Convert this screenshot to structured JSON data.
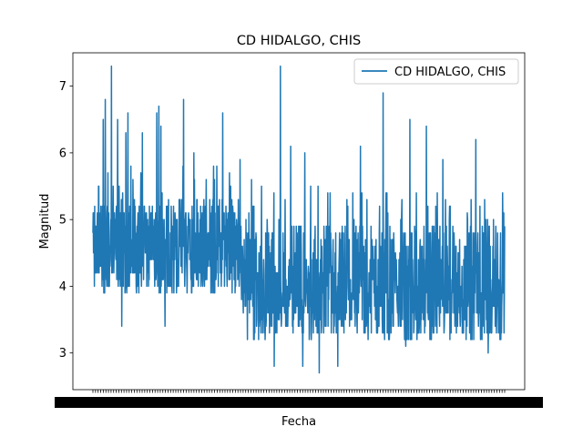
{
  "chart_data": {
    "type": "line",
    "title": "CD HIDALGO, CHIS",
    "xlabel": "Fecha",
    "ylabel": "Magnitud",
    "ylim": [
      2.45,
      7.5
    ],
    "yticks": [
      3,
      4,
      5,
      6,
      7
    ],
    "x_tick_labels_overlapping": true,
    "legend": {
      "position": "upper right",
      "entries": [
        "CD HIDALGO, CHIS"
      ]
    },
    "grid": false,
    "series": [
      {
        "name": "CD HIDALGO, CHIS",
        "color": "#1f77b4",
        "point_count": 1400,
        "segments": [
          {
            "until": 0.36,
            "low": 3.9,
            "mid": 4.6,
            "high": 5.3
          },
          {
            "until": 0.39,
            "low": 3.6,
            "mid": 4.3,
            "high": 5.1
          },
          {
            "until": 1.0,
            "low": 3.2,
            "mid": 3.9,
            "high": 4.9
          }
        ],
        "peaks": [
          {
            "pos": 0.045,
            "value": 7.3
          },
          {
            "pos": 0.025,
            "value": 6.5
          },
          {
            "pos": 0.03,
            "value": 6.8
          },
          {
            "pos": 0.06,
            "value": 6.5
          },
          {
            "pos": 0.08,
            "value": 6.3
          },
          {
            "pos": 0.085,
            "value": 6.6
          },
          {
            "pos": 0.12,
            "value": 6.3
          },
          {
            "pos": 0.155,
            "value": 6.6
          },
          {
            "pos": 0.16,
            "value": 6.7
          },
          {
            "pos": 0.165,
            "value": 6.4
          },
          {
            "pos": 0.22,
            "value": 6.8
          },
          {
            "pos": 0.245,
            "value": 6.0
          },
          {
            "pos": 0.315,
            "value": 6.6
          },
          {
            "pos": 0.455,
            "value": 7.3
          },
          {
            "pos": 0.48,
            "value": 6.1
          },
          {
            "pos": 0.515,
            "value": 6.0
          },
          {
            "pos": 0.65,
            "value": 6.1
          },
          {
            "pos": 0.705,
            "value": 6.9
          },
          {
            "pos": 0.77,
            "value": 6.5
          },
          {
            "pos": 0.81,
            "value": 6.4
          },
          {
            "pos": 0.85,
            "value": 5.9
          },
          {
            "pos": 0.93,
            "value": 6.2
          }
        ],
        "dips": [
          {
            "pos": 0.07,
            "value": 3.4
          },
          {
            "pos": 0.175,
            "value": 3.4
          },
          {
            "pos": 0.375,
            "value": 3.2
          },
          {
            "pos": 0.44,
            "value": 2.8
          },
          {
            "pos": 0.51,
            "value": 2.8
          },
          {
            "pos": 0.55,
            "value": 2.7
          },
          {
            "pos": 0.595,
            "value": 2.8
          },
          {
            "pos": 0.76,
            "value": 3.1
          },
          {
            "pos": 0.96,
            "value": 3.0
          }
        ]
      }
    ]
  }
}
